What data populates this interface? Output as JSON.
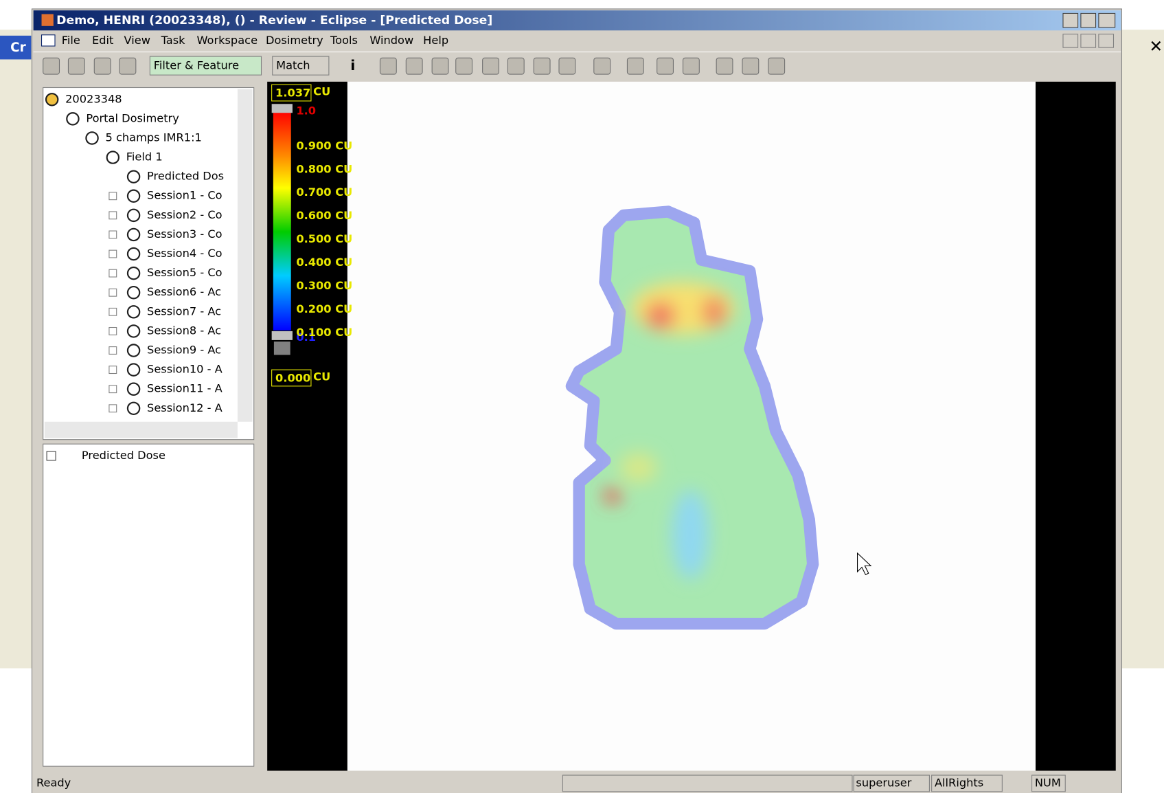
{
  "window": {
    "title": "Demo, HENRI (20023348), () - Review - Eclipse - [Predicted Dose]"
  },
  "background_fragment": "Cr",
  "menu": [
    "File",
    "Edit",
    "View",
    "Task",
    "Workspace",
    "Dosimetry",
    "Tools",
    "Window",
    "Help"
  ],
  "toolbar": {
    "filter": "Filter & Feature",
    "match": "Match",
    "info": "i"
  },
  "tree": [
    "20023348",
    "Portal Dosimetry",
    "5 champs IMR1:1",
    "Field 1",
    "Predicted Dos",
    "Session1 - Co",
    "Session2 - Co",
    "Session3 - Co",
    "Session4 - Co",
    "Session5 - Co",
    "Session6 - Ac",
    "Session7 - Ac",
    "Session8 - Ac",
    "Session9 - Ac",
    "Session10 - A",
    "Session11 - A",
    "Session12 - A"
  ],
  "selection_list": [
    "Predicted Dose"
  ],
  "colorbar": {
    "max_value": "1.037",
    "unit": "CU",
    "top_marker": "1.0",
    "labels": [
      "0.900 CU",
      "0.800 CU",
      "0.700 CU",
      "0.600 CU",
      "0.500 CU",
      "0.400 CU",
      "0.300 CU",
      "0.200 CU",
      "0.100 CU"
    ],
    "bottom_marker": "0.1",
    "min_value": "0.000"
  },
  "status": {
    "message": "Ready",
    "user": "superuser",
    "rights": "AllRights",
    "num": "NUM"
  }
}
